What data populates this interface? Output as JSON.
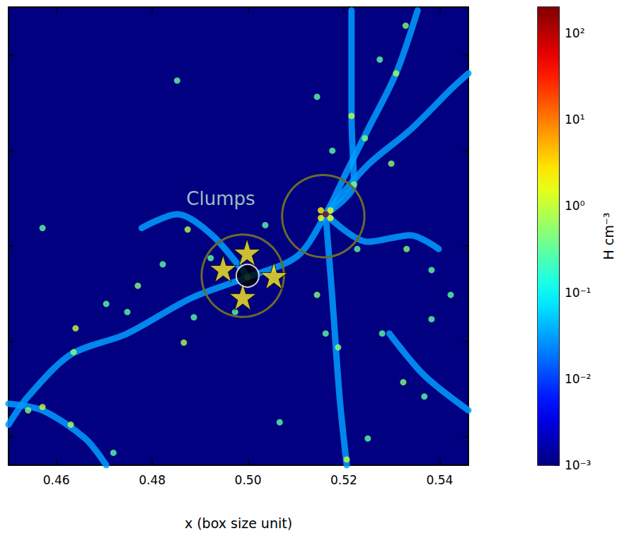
{
  "chart_data": {
    "type": "density_map",
    "xlabel": "x (box size unit)",
    "xlim": [
      0.45,
      0.546
    ],
    "xticks": [
      0.46,
      0.48,
      {
        "value": 0.5,
        "label": "0.50"
      },
      0.52,
      0.54
    ],
    "ylim": [
      0.454,
      0.55
    ],
    "yticks": [
      0.46,
      0.48,
      0.5,
      0.52,
      0.54
    ],
    "tick_labels": "x",
    "colorbar": {
      "label": "H cm⁻³",
      "log": true,
      "range": [
        0.001,
        200
      ],
      "ticks": [
        {
          "value": 0.001,
          "label": "10⁻³"
        },
        {
          "value": 0.01,
          "label": "10⁻²"
        },
        {
          "value": 0.1,
          "label": "10⁻¹"
        },
        {
          "value": 1,
          "label": "10⁰"
        },
        {
          "value": 10,
          "label": "10¹"
        },
        {
          "value": 100,
          "label": "10²"
        }
      ]
    },
    "background_density": 0.001,
    "filaments": [
      {
        "density": 0.03,
        "points": [
          [
            0.5354,
            0.5493
          ],
          [
            0.5309,
            0.5361
          ],
          [
            0.525,
            0.5243
          ],
          [
            0.5206,
            0.5155
          ],
          [
            0.5162,
            0.5066
          ],
          [
            0.5103,
            0.4978
          ],
          [
            0.4999,
            0.4934
          ],
          [
            0.4881,
            0.489
          ],
          [
            0.4748,
            0.4816
          ],
          [
            0.463,
            0.4772
          ],
          [
            0.4541,
            0.4684
          ],
          [
            0.45,
            0.4625
          ]
        ]
      },
      {
        "density": 0.03,
        "points": [
          [
            0.5162,
            0.5066
          ],
          [
            0.525,
            0.5169
          ],
          [
            0.5339,
            0.5243
          ],
          [
            0.5427,
            0.5331
          ],
          [
            0.546,
            0.5361
          ]
        ]
      },
      {
        "density": 0.03,
        "points": [
          [
            0.5216,
            0.5493
          ],
          [
            0.5216,
            0.5272
          ],
          [
            0.5221,
            0.5128
          ],
          [
            0.5162,
            0.5066
          ]
        ]
      },
      {
        "density": 0.03,
        "points": [
          [
            0.5162,
            0.5066
          ],
          [
            0.5176,
            0.489
          ],
          [
            0.5191,
            0.4684
          ],
          [
            0.5206,
            0.454
          ]
        ]
      },
      {
        "density": 0.03,
        "points": [
          [
            0.4999,
            0.4934
          ],
          [
            0.4925,
            0.5022
          ],
          [
            0.4852,
            0.5066
          ],
          [
            0.4778,
            0.5037
          ]
        ]
      },
      {
        "density": 0.03,
        "points": [
          [
            0.5295,
            0.4816
          ],
          [
            0.5368,
            0.4728
          ],
          [
            0.546,
            0.4655
          ]
        ]
      },
      {
        "density": 0.03,
        "points": [
          [
            0.45,
            0.4669
          ],
          [
            0.4571,
            0.4655
          ],
          [
            0.466,
            0.4596
          ],
          [
            0.4704,
            0.454
          ]
        ]
      },
      {
        "density": 0.03,
        "points": [
          [
            0.5162,
            0.5066
          ],
          [
            0.525,
            0.5008
          ],
          [
            0.5339,
            0.5022
          ],
          [
            0.5398,
            0.4993
          ]
        ]
      }
    ],
    "clumps": [
      [
        0.5216,
        0.5272,
        1
      ],
      [
        0.5244,
        0.5225,
        0.5
      ],
      [
        0.5309,
        0.5361,
        0.8
      ],
      [
        0.5275,
        0.539,
        0.3
      ],
      [
        0.5329,
        0.5461,
        0.5
      ],
      [
        0.5144,
        0.5312,
        0.3
      ],
      [
        0.5176,
        0.5199,
        0.3
      ],
      [
        0.5221,
        0.5128,
        0.5
      ],
      [
        0.4874,
        0.5034,
        0.8
      ],
      [
        0.4922,
        0.4974,
        0.3
      ],
      [
        0.5036,
        0.5043,
        0.3
      ],
      [
        0.4822,
        0.4961,
        0.3
      ],
      [
        0.477,
        0.4916,
        0.5
      ],
      [
        0.4748,
        0.4861,
        0.3
      ],
      [
        0.4704,
        0.4878,
        0.3
      ],
      [
        0.464,
        0.4827,
        1
      ],
      [
        0.4636,
        0.4777,
        0.5
      ],
      [
        0.4571,
        0.4662,
        1
      ],
      [
        0.4541,
        0.4655,
        0.5
      ],
      [
        0.4866,
        0.4797,
        0.8
      ],
      [
        0.4887,
        0.485,
        0.3
      ],
      [
        0.4973,
        0.4861,
        0.3
      ],
      [
        0.5144,
        0.4897,
        0.5
      ],
      [
        0.5162,
        0.4816,
        0.3
      ],
      [
        0.5188,
        0.4787,
        0.5
      ],
      [
        0.528,
        0.4816,
        0.3
      ],
      [
        0.5324,
        0.4714,
        0.5
      ],
      [
        0.5368,
        0.4684,
        0.3
      ],
      [
        0.5383,
        0.4846,
        0.3
      ],
      [
        0.5331,
        0.4993,
        0.5
      ],
      [
        0.5383,
        0.4949,
        0.3
      ],
      [
        0.5423,
        0.4897,
        0.3
      ],
      [
        0.5299,
        0.5172,
        0.5
      ],
      [
        0.5206,
        0.4552,
        1
      ],
      [
        0.5066,
        0.463,
        0.3
      ],
      [
        0.525,
        0.4596,
        0.3
      ],
      [
        0.5228,
        0.4993,
        0.3
      ],
      [
        0.4852,
        0.5346,
        0.3
      ],
      [
        0.4571,
        0.5037,
        0.3
      ],
      [
        0.463,
        0.4625,
        0.8
      ],
      [
        0.4719,
        0.4566,
        0.3
      ],
      [
        0.4999,
        0.4934,
        0.5
      ],
      [
        0.5152,
        0.5074,
        2
      ],
      [
        0.5172,
        0.5074,
        2
      ],
      [
        0.5152,
        0.5058,
        2
      ],
      [
        0.5172,
        0.5058,
        2
      ],
      [
        0.5162,
        0.5066,
        150
      ]
    ],
    "annotations": [
      {
        "text": "Clumps",
        "x": 0.4943,
        "y": 0.5099,
        "color": "#c8f0d8"
      }
    ],
    "circles": [
      {
        "center": [
          0.4989,
          0.4937
        ],
        "radius": 0.0086,
        "color": "#6b6a2a"
      },
      {
        "center": [
          0.5157,
          0.5062
        ],
        "radius": 0.0086,
        "color": "#6b6a2a"
      }
    ],
    "stars": {
      "marker": "star",
      "color": "#ffee22",
      "points": [
        [
          0.4998,
          0.4986
        ],
        [
          0.4948,
          0.4952
        ],
        [
          0.5054,
          0.4937
        ],
        [
          0.4989,
          0.4893
        ]
      ]
    },
    "black_hole": {
      "marker": "circle",
      "color": "#000000",
      "points": [
        [
          0.4999,
          0.4937
        ]
      ]
    }
  }
}
